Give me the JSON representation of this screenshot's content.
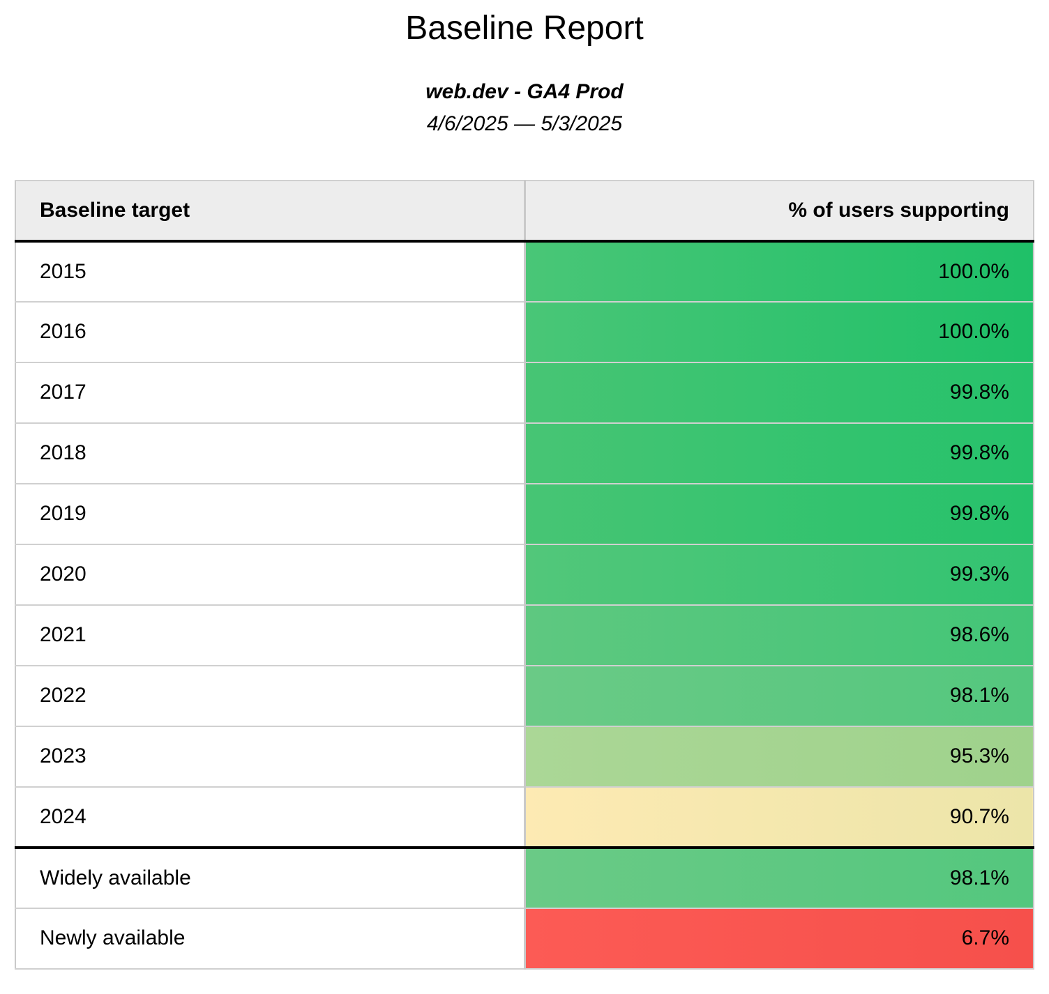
{
  "report": {
    "title": "Baseline Report",
    "subtitle": "web.dev - GA4 Prod",
    "date_range": "4/6/2025 — 5/3/2025"
  },
  "table": {
    "columns": [
      {
        "label": "Baseline target"
      },
      {
        "label": "% of users supporting"
      }
    ],
    "rows": [
      {
        "target": "2015",
        "value": "100.0%",
        "color_left": "#49c677",
        "color_right": "#1fc068",
        "divider_before": false
      },
      {
        "target": "2016",
        "value": "100.0%",
        "color_left": "#49c677",
        "color_right": "#1fc068",
        "divider_before": false
      },
      {
        "target": "2017",
        "value": "99.8%",
        "color_left": "#47c574",
        "color_right": "#26c26b",
        "divider_before": false
      },
      {
        "target": "2018",
        "value": "99.8%",
        "color_left": "#47c574",
        "color_right": "#26c26b",
        "divider_before": false
      },
      {
        "target": "2019",
        "value": "99.8%",
        "color_left": "#47c574",
        "color_right": "#26c26b",
        "divider_before": false
      },
      {
        "target": "2020",
        "value": "99.3%",
        "color_left": "#52c77a",
        "color_right": "#32c371",
        "divider_before": false
      },
      {
        "target": "2021",
        "value": "98.6%",
        "color_left": "#5ec880",
        "color_right": "#43c577",
        "divider_before": false
      },
      {
        "target": "2022",
        "value": "98.1%",
        "color_left": "#6aca86",
        "color_right": "#54c77e",
        "divider_before": false
      },
      {
        "target": "2023",
        "value": "95.3%",
        "color_left": "#abd796",
        "color_right": "#9fd28c",
        "divider_before": false
      },
      {
        "target": "2024",
        "value": "90.7%",
        "color_left": "#fdeab3",
        "color_right": "#ece5a9",
        "divider_before": false
      },
      {
        "target": "Widely available",
        "value": "98.1%",
        "color_left": "#6aca86",
        "color_right": "#54c77e",
        "divider_before": true
      },
      {
        "target": "Newly available",
        "value": "6.7%",
        "color_left": "#fc5b55",
        "color_right": "#f6504b",
        "divider_before": false
      }
    ]
  },
  "colors": {
    "header_background": "#ededed",
    "grid_line": "#d0d0d0",
    "section_divider": "#000000",
    "best_green": "#1fc068",
    "warning_yellow": "#ece5a9",
    "worst_red": "#f6504b"
  },
  "chart_data": {
    "type": "table",
    "title": "Baseline Report",
    "subtitle": "web.dev - GA4 Prod",
    "date_range": "4/6/2025 — 5/3/2025",
    "columns": [
      "Baseline target",
      "% of users supporting"
    ],
    "categories": [
      "2015",
      "2016",
      "2017",
      "2018",
      "2019",
      "2020",
      "2021",
      "2022",
      "2023",
      "2024",
      "Widely available",
      "Newly available"
    ],
    "values": [
      100.0,
      100.0,
      99.8,
      99.8,
      99.8,
      99.3,
      98.6,
      98.1,
      95.3,
      90.7,
      98.1,
      6.7
    ],
    "value_unit": "%",
    "layout": "heatmap-colored value column, green (high) to yellow to red (low); thick black rule under header and between 2024 and summary rows"
  }
}
